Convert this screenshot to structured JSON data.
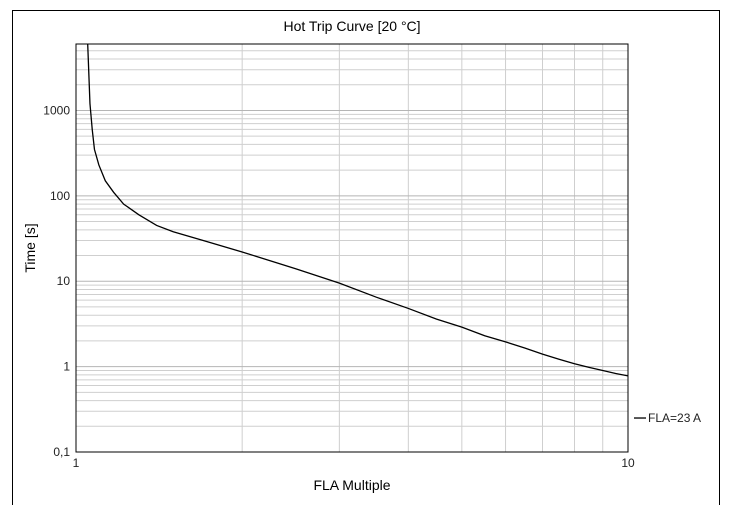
{
  "chart_data": {
    "type": "line",
    "title": "Hot Trip Curve [20 °C]",
    "xlabel": "FLA Multiple",
    "ylabel": "Time [s]",
    "x_scale": "log",
    "y_scale": "log",
    "xlim": [
      1,
      10
    ],
    "ylim": [
      0.1,
      6000
    ],
    "x_tick_labels": [
      "1",
      "10"
    ],
    "y_tick_labels": [
      "0,1",
      "1",
      "10",
      "100",
      "1000"
    ],
    "grid": true,
    "legend_position": "right",
    "series": [
      {
        "name": "FLA=23 A",
        "color": "#000000",
        "x": [
          1.05,
          1.06,
          1.07,
          1.08,
          1.1,
          1.13,
          1.17,
          1.22,
          1.3,
          1.4,
          1.5,
          1.7,
          2.0,
          2.5,
          3.0,
          3.5,
          4.0,
          4.5,
          5.0,
          5.5,
          6.0,
          6.5,
          7.0,
          7.5,
          8.0,
          8.5,
          9.0,
          9.5,
          10.0
        ],
        "y": [
          6000,
          1200,
          600,
          350,
          230,
          150,
          110,
          80,
          60,
          45,
          38,
          30,
          22,
          14,
          9.5,
          6.5,
          4.8,
          3.6,
          2.9,
          2.3,
          1.95,
          1.65,
          1.4,
          1.22,
          1.08,
          0.98,
          0.9,
          0.83,
          0.78
        ]
      }
    ]
  }
}
